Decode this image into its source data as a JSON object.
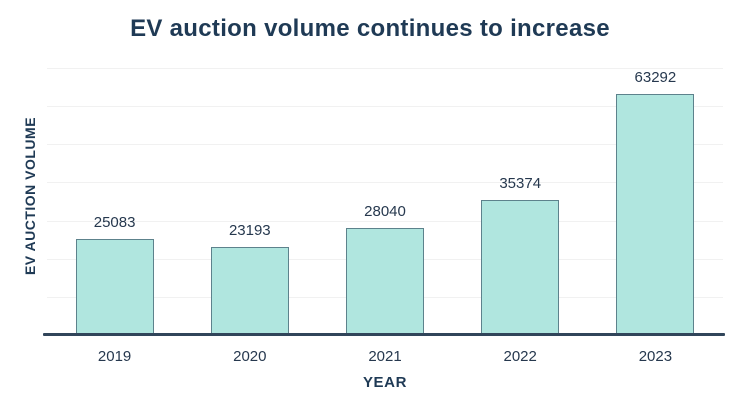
{
  "title": "EV auction volume continues to increase",
  "chart_data": {
    "type": "bar",
    "title": "EV auction volume continues to increase",
    "categories": [
      "2019",
      "2020",
      "2021",
      "2022",
      "2023"
    ],
    "values": [
      25083,
      23193,
      28040,
      35374,
      63292
    ],
    "value_labels": [
      "25083",
      "23193",
      "28040",
      "35374",
      "63292"
    ],
    "xlabel": "YEAR",
    "ylabel": "EV AUCTION VOLUME",
    "ylim": [
      0,
      70000
    ],
    "grid_step": 10000,
    "grid": true,
    "y_tick_labels_shown": false,
    "legend": "none"
  },
  "style": {
    "background": "#ffffff",
    "title_color": "#1f3a55",
    "label_color": "#26384e",
    "bar_fill": "#b0e6df",
    "bar_border": "#5d828c",
    "axis_color": "#31455a",
    "grid_color": "#f1f1f1"
  }
}
